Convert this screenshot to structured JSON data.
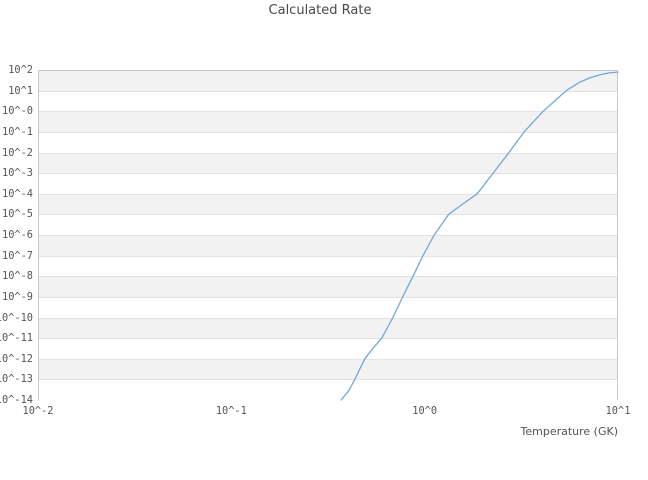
{
  "title": "Calculated Rate",
  "chart_data": {
    "type": "line",
    "title": "Calculated Rate",
    "xlabel": "Temperature (GK)",
    "ylabel": "",
    "x_scale": "log",
    "y_scale": "log",
    "xlim": [
      0.01,
      10
    ],
    "ylim": [
      1e-14,
      100
    ],
    "grid": "horizontal-decade-bands",
    "legend": "none",
    "x_ticks": [
      {
        "label": "10^-2",
        "value": 0.01
      },
      {
        "label": "10^-1",
        "value": 0.1
      },
      {
        "label": "10^0",
        "value": 1
      },
      {
        "label": "10^1",
        "value": 10
      }
    ],
    "y_ticks": [
      {
        "label": "10^2",
        "exp": 2
      },
      {
        "label": "10^1",
        "exp": 1
      },
      {
        "label": "10^-0",
        "exp": 0
      },
      {
        "label": "10^-1",
        "exp": -1
      },
      {
        "label": "10^-2",
        "exp": -2
      },
      {
        "label": "10^-3",
        "exp": -3
      },
      {
        "label": "10^-4",
        "exp": -4
      },
      {
        "label": "10^-5",
        "exp": -5
      },
      {
        "label": "10^-6",
        "exp": -6
      },
      {
        "label": "10^-7",
        "exp": -7
      },
      {
        "label": "10^-8",
        "exp": -8
      },
      {
        "label": "10^-9",
        "exp": -9
      },
      {
        "label": "10^-10",
        "exp": -10
      },
      {
        "label": "10^-11",
        "exp": -11
      },
      {
        "label": "10^-12",
        "exp": -12
      },
      {
        "label": "10^-13",
        "exp": -13
      },
      {
        "label": "10^-14",
        "exp": -14
      }
    ],
    "colors": {
      "band_gray": "#f2f2f2",
      "band_white": "#ffffff",
      "gridline": "#e2e2e2",
      "border": "#c9c9c9",
      "curve": "#6fa8dc",
      "text": "#555555"
    },
    "series": [
      {
        "name": "calculated-rate",
        "color": "#6fa8dc",
        "points_T_log10rate": [
          [
            0.37,
            -14.0
          ],
          [
            0.405,
            -13.55
          ],
          [
            0.435,
            -13.0
          ],
          [
            0.49,
            -12.0
          ],
          [
            0.545,
            -11.45
          ],
          [
            0.6,
            -11.0
          ],
          [
            0.685,
            -10.0
          ],
          [
            0.77,
            -9.0
          ],
          [
            0.87,
            -8.0
          ],
          [
            0.98,
            -7.0
          ],
          [
            1.12,
            -6.0
          ],
          [
            1.33,
            -5.0
          ],
          [
            1.57,
            -4.5
          ],
          [
            1.87,
            -4.0
          ],
          [
            2.26,
            -3.0
          ],
          [
            2.73,
            -2.0
          ],
          [
            3.27,
            -1.0
          ],
          [
            4.1,
            0.0
          ],
          [
            5.4,
            1.0
          ],
          [
            6.3,
            1.4
          ],
          [
            7.2,
            1.63
          ],
          [
            8.2,
            1.78
          ],
          [
            9.0,
            1.86
          ],
          [
            10.0,
            1.9
          ]
        ]
      }
    ]
  }
}
